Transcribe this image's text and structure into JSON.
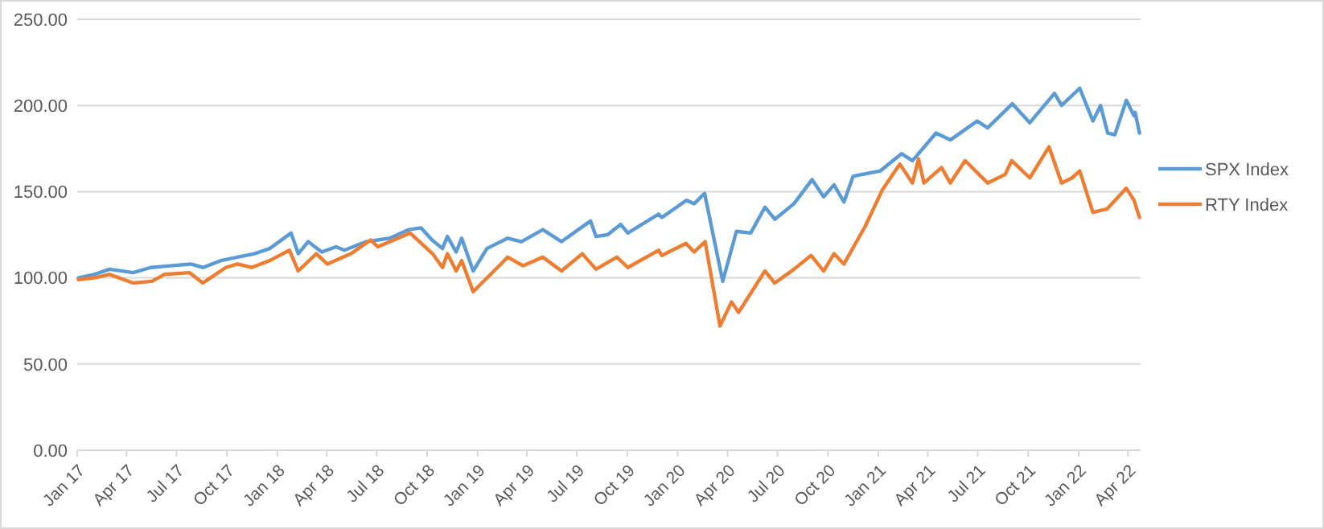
{
  "chart_data": {
    "type": "line",
    "xlim": [
      "2017-01-01",
      "2022-04-24"
    ],
    "ylim": [
      0,
      250
    ],
    "yticks": [
      {
        "value": 0,
        "label": "0.00"
      },
      {
        "value": 50,
        "label": "50.00"
      },
      {
        "value": 100,
        "label": "100.00"
      },
      {
        "value": 150,
        "label": "150.00"
      },
      {
        "value": 200,
        "label": "200.00"
      },
      {
        "value": 250,
        "label": "250.00"
      }
    ],
    "xticks": [
      {
        "value": "2017-01-01",
        "label": "Jan 17"
      },
      {
        "value": "2017-04-01",
        "label": "Apr 17"
      },
      {
        "value": "2017-07-01",
        "label": "Jul 17"
      },
      {
        "value": "2017-10-01",
        "label": "Oct 17"
      },
      {
        "value": "2018-01-01",
        "label": "Jan 18"
      },
      {
        "value": "2018-04-01",
        "label": "Apr 18"
      },
      {
        "value": "2018-07-01",
        "label": "Jul 18"
      },
      {
        "value": "2018-10-01",
        "label": "Oct 18"
      },
      {
        "value": "2019-01-01",
        "label": "Jan 19"
      },
      {
        "value": "2019-04-01",
        "label": "Apr 19"
      },
      {
        "value": "2019-07-01",
        "label": "Jul 19"
      },
      {
        "value": "2019-10-01",
        "label": "Oct 19"
      },
      {
        "value": "2020-01-01",
        "label": "Jan 20"
      },
      {
        "value": "2020-04-01",
        "label": "Apr 20"
      },
      {
        "value": "2020-07-01",
        "label": "Jul 20"
      },
      {
        "value": "2020-10-01",
        "label": "Oct 20"
      },
      {
        "value": "2021-01-01",
        "label": "Jan 21"
      },
      {
        "value": "2021-04-01",
        "label": "Apr 21"
      },
      {
        "value": "2021-07-01",
        "label": "Jul 21"
      },
      {
        "value": "2021-10-01",
        "label": "Oct 21"
      },
      {
        "value": "2022-01-01",
        "label": "Jan 22"
      },
      {
        "value": "2022-04-01",
        "label": "Apr 22"
      }
    ],
    "grid": "y",
    "legend": "right",
    "marker": "none",
    "line_style": "solid",
    "series": [
      {
        "name": "SPX Index",
        "color": "#5b9bd5",
        "x": [
          "2017-01-03",
          "2017-02-01",
          "2017-03-01",
          "2017-04-13",
          "2017-05-15",
          "2017-06-19",
          "2017-07-27",
          "2017-08-18",
          "2017-09-20",
          "2017-10-20",
          "2017-11-20",
          "2017-12-18",
          "2018-01-26",
          "2018-02-08",
          "2018-02-26",
          "2018-03-23",
          "2018-04-18",
          "2018-05-03",
          "2018-06-12",
          "2018-07-25",
          "2018-08-29",
          "2018-09-20",
          "2018-10-10",
          "2018-10-29",
          "2018-11-07",
          "2018-11-23",
          "2018-12-03",
          "2018-12-24",
          "2019-01-18",
          "2019-02-25",
          "2019-03-22",
          "2019-04-30",
          "2019-06-03",
          "2019-07-26",
          "2019-08-05",
          "2019-08-26",
          "2019-09-19",
          "2019-10-02",
          "2019-11-27",
          "2019-12-03",
          "2020-01-17",
          "2020-01-31",
          "2020-02-19",
          "2020-03-23",
          "2020-04-17",
          "2020-05-13",
          "2020-06-08",
          "2020-06-26",
          "2020-07-31",
          "2020-09-02",
          "2020-09-23",
          "2020-10-12",
          "2020-10-30",
          "2020-11-16",
          "2021-01-04",
          "2021-02-12",
          "2021-03-04",
          "2021-04-16",
          "2021-05-12",
          "2021-06-30",
          "2021-07-19",
          "2021-09-02",
          "2021-10-04",
          "2021-11-18",
          "2021-12-01",
          "2022-01-03",
          "2022-01-27",
          "2022-02-10",
          "2022-02-23",
          "2022-03-08",
          "2022-03-29",
          "2022-04-12",
          "2022-04-14",
          "2022-04-22"
        ],
        "values": [
          100,
          102,
          105,
          103,
          106,
          107,
          108,
          106,
          110,
          112,
          114,
          117,
          126,
          114,
          121,
          115,
          118,
          116,
          121,
          123,
          128,
          129,
          122,
          117,
          124,
          115,
          123,
          104,
          117,
          123,
          121,
          128,
          121,
          133,
          124,
          125,
          131,
          126,
          137,
          135,
          145,
          143,
          149,
          98,
          127,
          126,
          141,
          134,
          143,
          157,
          147,
          154,
          144,
          159,
          162,
          172,
          168,
          184,
          180,
          191,
          187,
          201,
          190,
          207,
          200,
          210,
          191,
          200,
          184,
          183,
          203,
          194,
          196,
          184
        ]
      },
      {
        "name": "RTY Index",
        "color": "#ed7d31",
        "x": [
          "2017-01-03",
          "2017-02-01",
          "2017-03-01",
          "2017-04-13",
          "2017-05-17",
          "2017-06-09",
          "2017-07-25",
          "2017-08-18",
          "2017-09-29",
          "2017-10-20",
          "2017-11-15",
          "2017-12-18",
          "2018-01-23",
          "2018-02-08",
          "2018-03-13",
          "2018-04-02",
          "2018-05-15",
          "2018-06-20",
          "2018-07-03",
          "2018-08-31",
          "2018-10-11",
          "2018-10-29",
          "2018-11-07",
          "2018-11-23",
          "2018-12-03",
          "2018-12-24",
          "2019-01-31",
          "2019-02-25",
          "2019-03-25",
          "2019-04-30",
          "2019-06-03",
          "2019-07-11",
          "2019-08-05",
          "2019-09-12",
          "2019-10-02",
          "2019-11-27",
          "2019-12-03",
          "2020-01-16",
          "2020-01-31",
          "2020-02-20",
          "2020-03-18",
          "2020-04-08",
          "2020-04-21",
          "2020-06-08",
          "2020-06-26",
          "2020-07-31",
          "2020-08-31",
          "2020-09-23",
          "2020-10-12",
          "2020-10-30",
          "2020-12-08",
          "2021-01-08",
          "2021-02-09",
          "2021-03-04",
          "2021-03-15",
          "2021-03-25",
          "2021-04-26",
          "2021-05-12",
          "2021-06-08",
          "2021-07-19",
          "2021-08-20",
          "2021-09-01",
          "2021-10-04",
          "2021-11-08",
          "2021-12-01",
          "2021-12-20",
          "2022-01-03",
          "2022-01-27",
          "2022-02-22",
          "2022-03-29",
          "2022-04-12",
          "2022-04-22"
        ],
        "values": [
          99,
          100,
          102,
          97,
          98,
          102,
          103,
          97,
          106,
          108,
          106,
          110,
          116,
          104,
          114,
          108,
          114,
          122,
          118,
          126,
          114,
          106,
          114,
          104,
          110,
          92,
          104,
          112,
          107,
          112,
          104,
          114,
          105,
          112,
          106,
          116,
          113,
          120,
          115,
          121,
          72,
          86,
          80,
          104,
          97,
          105,
          113,
          104,
          114,
          108,
          130,
          151,
          166,
          155,
          169,
          155,
          164,
          155,
          168,
          155,
          160,
          168,
          158,
          176,
          155,
          158,
          162,
          138,
          140,
          152,
          145,
          135
        ]
      }
    ]
  }
}
